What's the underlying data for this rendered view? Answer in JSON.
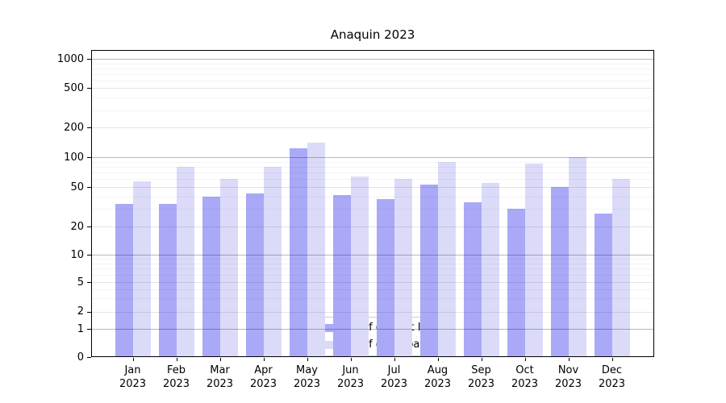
{
  "chart_data": {
    "type": "bar",
    "title": "Anaquin 2023",
    "categories": [
      "Jan",
      "Feb",
      "Mar",
      "Apr",
      "May",
      "Jun",
      "Jul",
      "Aug",
      "Sep",
      "Oct",
      "Nov",
      "Dec"
    ],
    "category_year": "2023",
    "series": [
      {
        "name": "Nb of distinct IPs",
        "color": "#a9a9f7",
        "values": [
          34,
          34,
          40,
          43,
          122,
          42,
          38,
          53,
          35,
          30,
          50,
          27
        ]
      },
      {
        "name": "Nb of downloads",
        "color": "#dbdbf9",
        "values": [
          57,
          80,
          61,
          80,
          140,
          64,
          60,
          90,
          55,
          86,
          100,
          61
        ]
      }
    ],
    "xlabel": "",
    "ylabel": "",
    "y_scale": "symlog",
    "y_ticks": [
      0,
      1,
      2,
      5,
      10,
      20,
      50,
      100,
      200,
      500,
      1000
    ],
    "ylim": [
      0,
      1000
    ],
    "grid": "on",
    "legend_position": "lower center inside plot"
  }
}
